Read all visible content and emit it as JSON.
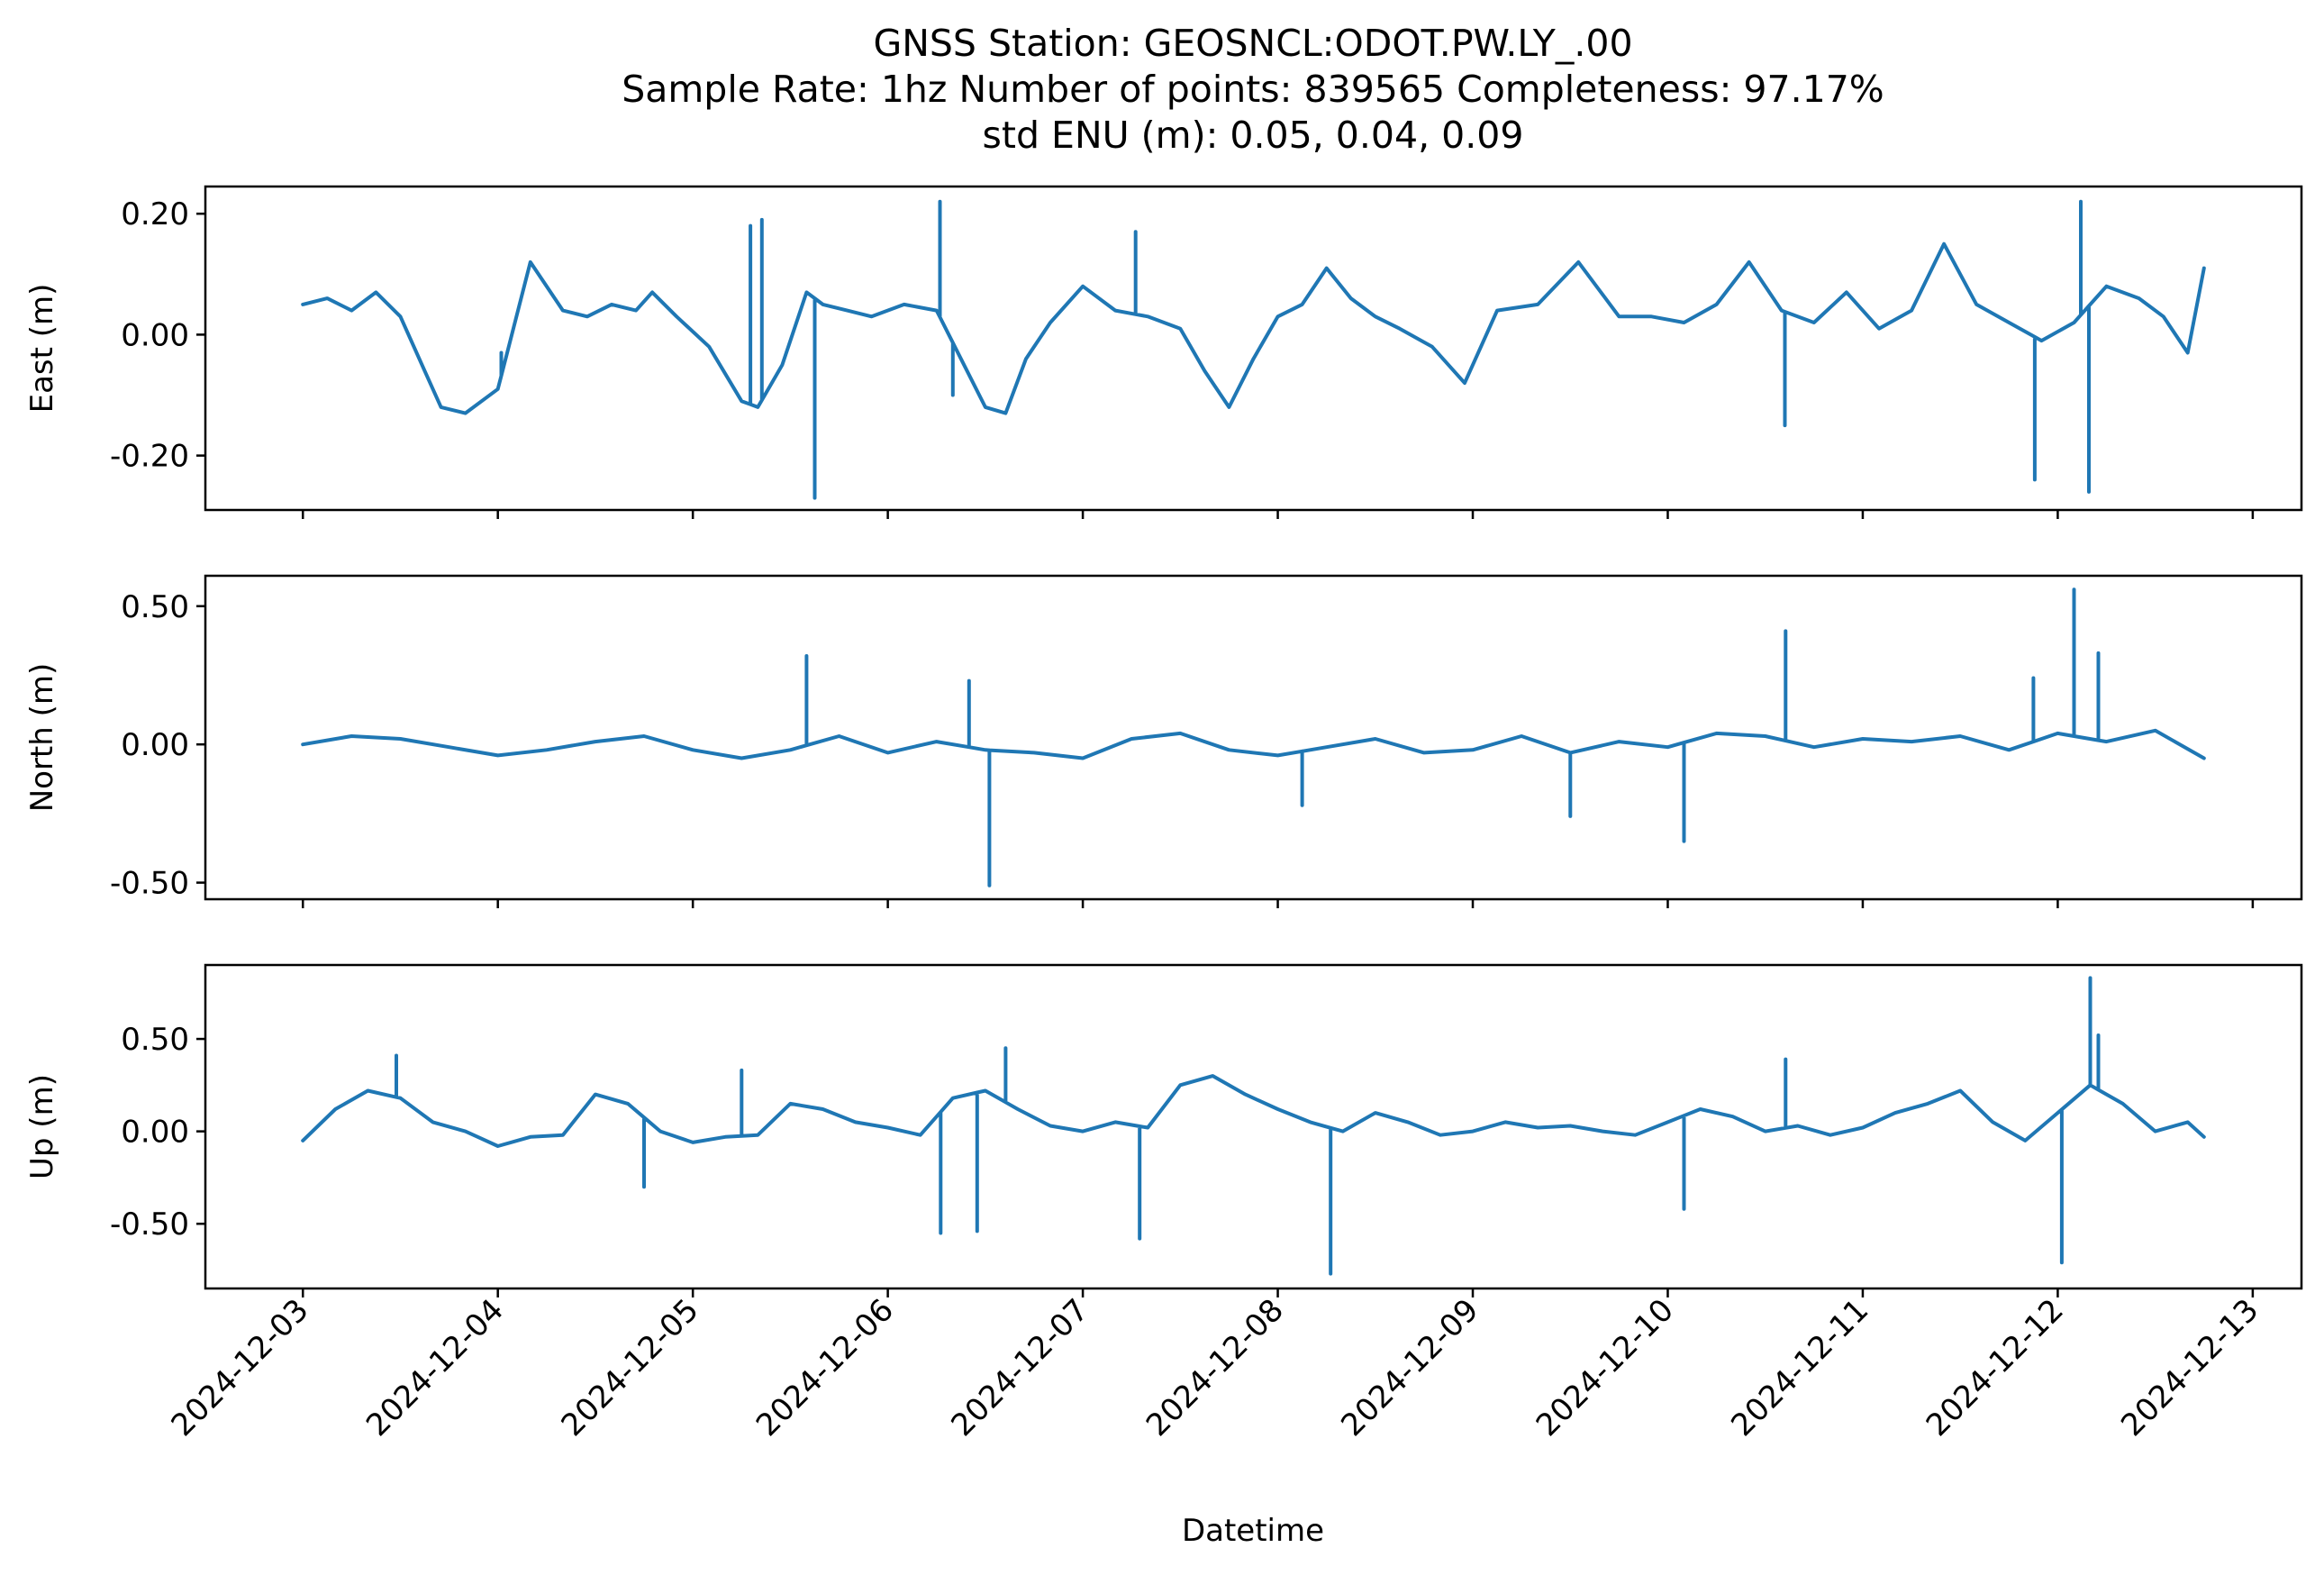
{
  "figure": {
    "title_lines": [
      "GNSS Station: GEOSNCL:ODOT.PW.LY_.00",
      "Sample Rate: 1hz   Number of points: 839565    Completeness:  97.17%",
      "std ENU (m):  0.05, 0.04, 0.09"
    ],
    "xlabel": "Datetime",
    "line_color": "#1f77b4"
  },
  "chart_data": [
    {
      "type": "line",
      "ylabel": "East (m)",
      "ylim": [
        -0.29,
        0.245
      ],
      "yticks": [
        0.2,
        0.0,
        -0.2
      ],
      "ytick_labels": [
        "0.20",
        "0.00",
        "-0.20"
      ],
      "xlim": [
        "2024-12-02T12:00",
        "2024-12-13T06:00"
      ],
      "show_xtick_labels": false,
      "x": [
        "2024-12-03T00:00",
        "2024-12-03T03:00",
        "2024-12-03T06:00",
        "2024-12-03T09:00",
        "2024-12-03T12:00",
        "2024-12-03T15:00",
        "2024-12-03T17:00",
        "2024-12-03T20:00",
        "2024-12-04T00:00",
        "2024-12-04T04:00",
        "2024-12-04T08:00",
        "2024-12-04T11:00",
        "2024-12-04T14:00",
        "2024-12-04T17:00",
        "2024-12-04T19:00",
        "2024-12-04T22:00",
        "2024-12-05T02:00",
        "2024-12-05T06:00",
        "2024-12-05T08:00",
        "2024-12-05T11:00",
        "2024-12-05T14:00",
        "2024-12-05T16:00",
        "2024-12-05T19:00",
        "2024-12-05T22:00",
        "2024-12-06T02:00",
        "2024-12-06T06:00",
        "2024-12-06T09:00",
        "2024-12-06T12:00",
        "2024-12-06T14:30",
        "2024-12-06T17:00",
        "2024-12-06T20:00",
        "2024-12-07T00:00",
        "2024-12-07T04:00",
        "2024-12-07T08:00",
        "2024-12-07T12:00",
        "2024-12-07T15:00",
        "2024-12-07T18:00",
        "2024-12-07T21:00",
        "2024-12-08T00:00",
        "2024-12-08T03:00",
        "2024-12-08T06:00",
        "2024-12-08T09:00",
        "2024-12-08T12:00",
        "2024-12-08T15:00",
        "2024-12-08T19:00",
        "2024-12-08T23:00",
        "2024-12-09T03:00",
        "2024-12-09T08:00",
        "2024-12-09T13:00",
        "2024-12-09T18:00",
        "2024-12-09T22:00",
        "2024-12-10T02:00",
        "2024-12-10T06:00",
        "2024-12-10T10:00",
        "2024-12-10T14:00",
        "2024-12-10T18:00",
        "2024-12-10T22:00",
        "2024-12-11T02:00",
        "2024-12-11T06:00",
        "2024-12-11T10:00",
        "2024-12-11T14:00",
        "2024-12-11T18:00",
        "2024-12-11T22:00",
        "2024-12-12T02:00",
        "2024-12-12T06:00",
        "2024-12-12T10:00",
        "2024-12-12T13:00",
        "2024-12-12T16:00",
        "2024-12-12T18:00"
      ],
      "values": [
        0.05,
        0.06,
        0.04,
        0.07,
        0.03,
        -0.06,
        -0.12,
        -0.13,
        -0.09,
        0.12,
        0.04,
        0.03,
        0.05,
        0.04,
        0.07,
        0.03,
        -0.02,
        -0.11,
        -0.12,
        -0.05,
        0.07,
        0.05,
        0.04,
        0.03,
        0.05,
        0.04,
        -0.04,
        -0.12,
        -0.13,
        -0.04,
        0.02,
        0.08,
        0.04,
        0.03,
        0.01,
        -0.06,
        -0.12,
        -0.04,
        0.03,
        0.05,
        0.11,
        0.06,
        0.03,
        0.01,
        -0.02,
        -0.08,
        0.04,
        0.05,
        0.12,
        0.03,
        0.03,
        0.02,
        0.05,
        0.12,
        0.04,
        0.02,
        0.07,
        0.01,
        0.04,
        0.15,
        0.05,
        0.02,
        -0.01,
        0.02,
        0.08,
        0.06,
        0.03,
        -0.03,
        0.11
      ],
      "spikes": [
        [
          "2024-12-04T00:25",
          -0.03
        ],
        [
          "2024-12-05T07:05",
          0.18
        ],
        [
          "2024-12-05T08:30",
          0.19
        ],
        [
          "2024-12-05T15:00",
          -0.27
        ],
        [
          "2024-12-06T06:25",
          0.22
        ],
        [
          "2024-12-06T08:00",
          -0.1
        ],
        [
          "2024-12-07T06:30",
          0.17
        ],
        [
          "2024-12-10T14:25",
          -0.15
        ],
        [
          "2024-12-11T21:10",
          -0.24
        ],
        [
          "2024-12-12T02:50",
          0.22
        ],
        [
          "2024-12-12T03:50",
          -0.26
        ]
      ]
    },
    {
      "type": "line",
      "ylabel": "North (m)",
      "ylim": [
        -0.56,
        0.61
      ],
      "yticks": [
        0.5,
        0.0,
        -0.5
      ],
      "ytick_labels": [
        "0.50",
        "0.00",
        "-0.50"
      ],
      "xlim": [
        "2024-12-02T12:00",
        "2024-12-13T06:00"
      ],
      "show_xtick_labels": false,
      "x": [
        "2024-12-03T00:00",
        "2024-12-03T06:00",
        "2024-12-03T12:00",
        "2024-12-03T18:00",
        "2024-12-04T00:00",
        "2024-12-04T06:00",
        "2024-12-04T12:00",
        "2024-12-04T18:00",
        "2024-12-05T00:00",
        "2024-12-05T06:00",
        "2024-12-05T12:00",
        "2024-12-05T18:00",
        "2024-12-06T00:00",
        "2024-12-06T06:00",
        "2024-12-06T12:00",
        "2024-12-06T18:00",
        "2024-12-07T00:00",
        "2024-12-07T06:00",
        "2024-12-07T12:00",
        "2024-12-07T18:00",
        "2024-12-08T00:00",
        "2024-12-08T06:00",
        "2024-12-08T12:00",
        "2024-12-08T18:00",
        "2024-12-09T00:00",
        "2024-12-09T06:00",
        "2024-12-09T12:00",
        "2024-12-09T18:00",
        "2024-12-10T00:00",
        "2024-12-10T06:00",
        "2024-12-10T12:00",
        "2024-12-10T18:00",
        "2024-12-11T00:00",
        "2024-12-11T06:00",
        "2024-12-11T12:00",
        "2024-12-11T18:00",
        "2024-12-12T00:00",
        "2024-12-12T06:00",
        "2024-12-12T12:00",
        "2024-12-12T18:00"
      ],
      "values": [
        0.0,
        0.03,
        0.02,
        -0.01,
        -0.04,
        -0.02,
        0.01,
        0.03,
        -0.02,
        -0.05,
        -0.02,
        0.03,
        -0.03,
        0.01,
        -0.02,
        -0.03,
        -0.05,
        0.02,
        0.04,
        -0.02,
        -0.04,
        -0.01,
        0.02,
        -0.03,
        -0.02,
        0.03,
        -0.03,
        0.01,
        -0.01,
        0.04,
        0.03,
        -0.01,
        0.02,
        0.01,
        0.03,
        -0.02,
        0.04,
        0.01,
        0.05,
        -0.05
      ],
      "spikes": [
        [
          "2024-12-05T14:00",
          0.32
        ],
        [
          "2024-12-06T10:00",
          0.23
        ],
        [
          "2024-12-06T12:30",
          -0.51
        ],
        [
          "2024-12-08T03:00",
          -0.22
        ],
        [
          "2024-12-09T12:00",
          -0.26
        ],
        [
          "2024-12-10T02:00",
          -0.35
        ],
        [
          "2024-12-10T14:30",
          0.41
        ],
        [
          "2024-12-11T21:00",
          0.24
        ],
        [
          "2024-12-12T02:00",
          0.56
        ],
        [
          "2024-12-12T05:00",
          0.33
        ]
      ]
    },
    {
      "type": "line",
      "ylabel": "Up (m)",
      "ylim": [
        -0.85,
        0.9
      ],
      "yticks": [
        0.5,
        0.0,
        -0.5
      ],
      "ytick_labels": [
        "0.50",
        "0.00",
        "-0.50"
      ],
      "xlim": [
        "2024-12-02T12:00",
        "2024-12-13T06:00"
      ],
      "show_xtick_labels": true,
      "x": [
        "2024-12-03T00:00",
        "2024-12-03T04:00",
        "2024-12-03T08:00",
        "2024-12-03T12:00",
        "2024-12-03T16:00",
        "2024-12-03T20:00",
        "2024-12-04T00:00",
        "2024-12-04T04:00",
        "2024-12-04T08:00",
        "2024-12-04T12:00",
        "2024-12-04T16:00",
        "2024-12-04T20:00",
        "2024-12-05T00:00",
        "2024-12-05T04:00",
        "2024-12-05T08:00",
        "2024-12-05T12:00",
        "2024-12-05T16:00",
        "2024-12-05T20:00",
        "2024-12-06T00:00",
        "2024-12-06T04:00",
        "2024-12-06T08:00",
        "2024-12-06T12:00",
        "2024-12-06T16:00",
        "2024-12-06T20:00",
        "2024-12-07T00:00",
        "2024-12-07T04:00",
        "2024-12-07T08:00",
        "2024-12-07T12:00",
        "2024-12-07T16:00",
        "2024-12-07T20:00",
        "2024-12-08T00:00",
        "2024-12-08T04:00",
        "2024-12-08T08:00",
        "2024-12-08T12:00",
        "2024-12-08T16:00",
        "2024-12-08T20:00",
        "2024-12-09T00:00",
        "2024-12-09T04:00",
        "2024-12-09T08:00",
        "2024-12-09T12:00",
        "2024-12-09T16:00",
        "2024-12-09T20:00",
        "2024-12-10T00:00",
        "2024-12-10T04:00",
        "2024-12-10T08:00",
        "2024-12-10T12:00",
        "2024-12-10T16:00",
        "2024-12-10T20:00",
        "2024-12-11T00:00",
        "2024-12-11T04:00",
        "2024-12-11T08:00",
        "2024-12-11T12:00",
        "2024-12-11T16:00",
        "2024-12-11T20:00",
        "2024-12-12T00:00",
        "2024-12-12T04:00",
        "2024-12-12T08:00",
        "2024-12-12T12:00",
        "2024-12-12T16:00",
        "2024-12-12T18:00"
      ],
      "values": [
        -0.05,
        0.12,
        0.22,
        0.18,
        0.05,
        0.0,
        -0.08,
        -0.03,
        -0.02,
        0.2,
        0.15,
        0.0,
        -0.06,
        -0.03,
        -0.02,
        0.15,
        0.12,
        0.05,
        0.02,
        -0.02,
        0.18,
        0.22,
        0.12,
        0.03,
        0.0,
        0.05,
        0.02,
        0.25,
        0.3,
        0.2,
        0.12,
        0.05,
        0.0,
        0.1,
        0.05,
        -0.02,
        0.0,
        0.05,
        0.02,
        0.03,
        0.0,
        -0.02,
        0.05,
        0.12,
        0.08,
        0.0,
        0.03,
        -0.02,
        0.02,
        0.1,
        0.15,
        0.22,
        0.05,
        -0.05,
        0.1,
        0.25,
        0.15,
        0.0,
        0.05,
        -0.03
      ],
      "spikes": [
        [
          "2024-12-03T11:30",
          0.41
        ],
        [
          "2024-12-04T18:00",
          -0.3
        ],
        [
          "2024-12-05T06:00",
          0.33
        ],
        [
          "2024-12-06T06:30",
          -0.55
        ],
        [
          "2024-12-06T11:00",
          -0.54
        ],
        [
          "2024-12-06T14:30",
          0.45
        ],
        [
          "2024-12-07T07:00",
          -0.58
        ],
        [
          "2024-12-08T06:30",
          -0.77
        ],
        [
          "2024-12-10T02:00",
          -0.42
        ],
        [
          "2024-12-10T14:30",
          0.39
        ],
        [
          "2024-12-12T00:30",
          -0.71
        ],
        [
          "2024-12-12T04:00",
          0.83
        ],
        [
          "2024-12-12T05:00",
          0.52
        ]
      ]
    }
  ],
  "x_ticks": [
    "2024-12-03",
    "2024-12-04",
    "2024-12-05",
    "2024-12-06",
    "2024-12-07",
    "2024-12-08",
    "2024-12-09",
    "2024-12-10",
    "2024-12-11",
    "2024-12-12",
    "2024-12-13"
  ]
}
